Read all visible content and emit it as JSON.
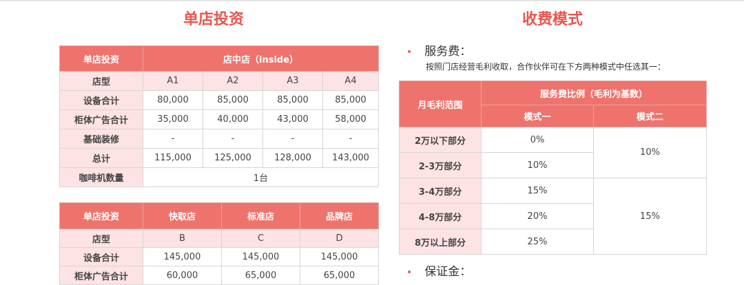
{
  "left": {
    "title": "单店投资",
    "table1": {
      "corner": "单店投资",
      "group": "店中店（inside）",
      "rows": [
        [
          "店型",
          "A1",
          "A2",
          "A3",
          "A4"
        ],
        [
          "设备合计",
          "80,000",
          "85,000",
          "85,000",
          "85,000"
        ],
        [
          "柜体广告合计",
          "35,000",
          "40,000",
          "43,000",
          "58,000"
        ],
        [
          "基础装修",
          "-",
          "-",
          "-",
          "-"
        ],
        [
          "总计",
          "115,000",
          "125,000",
          "128,000",
          "143,000"
        ]
      ],
      "machine_label": "咖啡机数量",
      "machine_value": "1台"
    },
    "table2": {
      "header": [
        "单店投资",
        "快取店",
        "标准店",
        "品牌店"
      ],
      "rows": [
        [
          "店型",
          "B",
          "C",
          "D"
        ],
        [
          "设备合计",
          "145,000",
          "145,000",
          "145,000"
        ],
        [
          "柜体广告合计",
          "60,000",
          "65,000",
          "65,000"
        ]
      ]
    }
  },
  "right": {
    "title": "收费模式",
    "bullet1": "服务费：",
    "desc": "按照门店经营毛利收取，合作伙伴可在下方两种模式中任选其一：",
    "table": {
      "range_header": "月毛利范围",
      "ratio_header": "服务费比例（毛利为基数）",
      "mode1": "模式一",
      "mode2": "模式二",
      "rows": [
        [
          "2万以下部分",
          "0%"
        ],
        [
          "2-3万部分",
          "10%"
        ],
        [
          "3-4万部分",
          "15%"
        ],
        [
          "4-8万部分",
          "20%"
        ],
        [
          "8万以上部分",
          "25%"
        ]
      ],
      "mode2_values": [
        "10%",
        "15%"
      ]
    },
    "bullet2": "保证金："
  }
}
